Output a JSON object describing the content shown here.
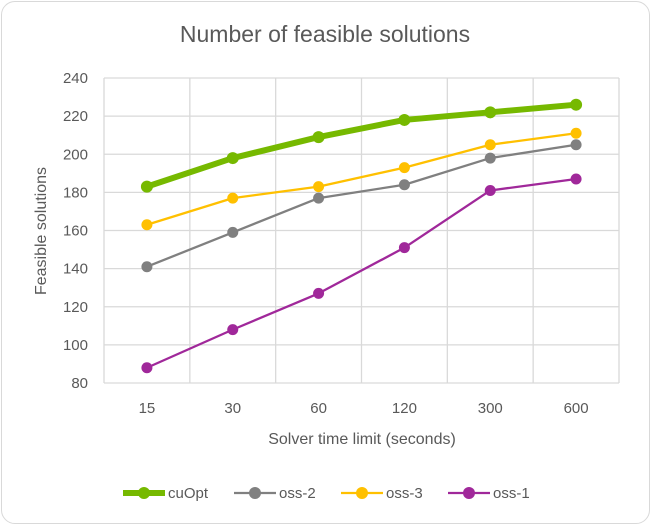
{
  "chart_data": {
    "type": "line",
    "title": "Number of feasible solutions",
    "xlabel": "Solver time limit (seconds)",
    "ylabel": "Feasible solutions",
    "categories": [
      "15",
      "30",
      "60",
      "120",
      "300",
      "600"
    ],
    "ylim": [
      80,
      240
    ],
    "yticks": [
      80,
      100,
      120,
      140,
      160,
      180,
      200,
      220,
      240
    ],
    "grid": true,
    "legend_position": "bottom",
    "series": [
      {
        "name": "cuOpt",
        "color": "#76b900",
        "values": [
          183,
          198,
          209,
          218,
          222,
          226
        ]
      },
      {
        "name": "oss-2",
        "color": "#808080",
        "values": [
          141,
          159,
          177,
          184,
          198,
          205
        ]
      },
      {
        "name": "oss-3",
        "color": "#ffc000",
        "values": [
          163,
          177,
          183,
          193,
          205,
          211
        ]
      },
      {
        "name": "oss-1",
        "color": "#a0289a",
        "values": [
          88,
          108,
          127,
          151,
          181,
          187
        ]
      }
    ]
  }
}
